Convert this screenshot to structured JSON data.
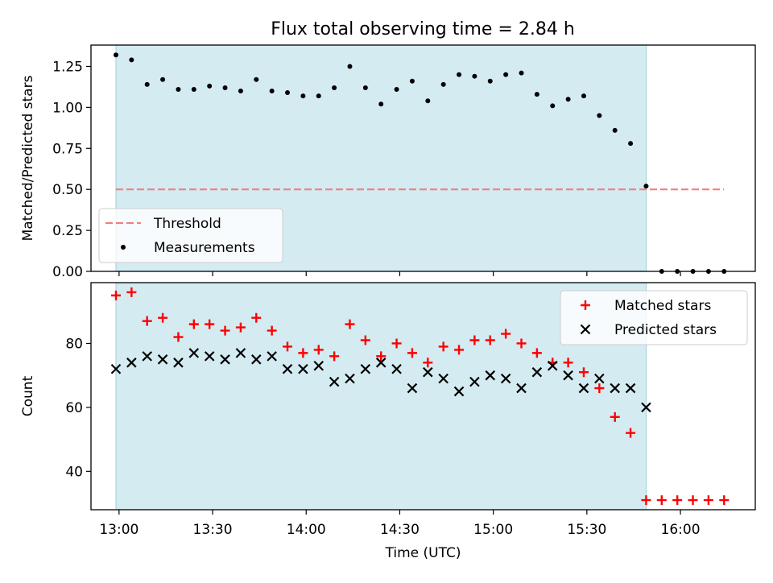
{
  "title": "Flux total observing time = 2.84 h",
  "chart_data": [
    {
      "type": "scatter",
      "ylabel": "Matched/Predicted stars",
      "ylim": [
        0,
        1.38
      ],
      "yticks": [
        0,
        0.25,
        0.5,
        0.75,
        1.0,
        1.25
      ],
      "ytick_labels": [
        "0.00",
        "0.25",
        "0.50",
        "0.75",
        "1.00",
        "1.25"
      ],
      "xlim": [
        "12:51",
        "16:24"
      ],
      "xticks": [
        "13:00",
        "13:30",
        "14:00",
        "14:30",
        "15:00",
        "15:30",
        "16:00"
      ],
      "shaded_span": [
        "12:59",
        "15:49"
      ],
      "shade_color": "#add8e6",
      "threshold": {
        "name": "Threshold",
        "value": 0.5,
        "x_range": [
          "12:59",
          "16:14"
        ],
        "color": "#f08080"
      },
      "series": [
        {
          "name": "Measurements",
          "color": "#000000",
          "x": [
            "12:59",
            "13:04",
            "13:09",
            "13:14",
            "13:19",
            "13:24",
            "13:29",
            "13:34",
            "13:39",
            "13:44",
            "13:49",
            "13:54",
            "13:59",
            "14:04",
            "14:09",
            "14:14",
            "14:19",
            "14:24",
            "14:29",
            "14:34",
            "14:39",
            "14:44",
            "14:49",
            "14:54",
            "14:59",
            "15:04",
            "15:09",
            "15:14",
            "15:19",
            "15:24",
            "15:29",
            "15:34",
            "15:39",
            "15:44",
            "15:49",
            "15:54",
            "15:59",
            "16:04",
            "16:09",
            "16:14"
          ],
          "values": [
            1.32,
            1.29,
            1.14,
            1.17,
            1.11,
            1.11,
            1.13,
            1.12,
            1.1,
            1.17,
            1.1,
            1.09,
            1.07,
            1.07,
            1.12,
            1.25,
            1.12,
            1.02,
            1.11,
            1.16,
            1.04,
            1.14,
            1.2,
            1.19,
            1.16,
            1.2,
            1.21,
            1.08,
            1.01,
            1.05,
            1.07,
            0.95,
            0.86,
            0.78,
            0.52,
            0.0,
            0.0,
            0.0,
            0.0,
            0.0
          ]
        }
      ],
      "legend": "lower-left"
    },
    {
      "type": "scatter",
      "ylabel": "Count",
      "xlabel": "Time (UTC)",
      "ylim": [
        28,
        99
      ],
      "yticks": [
        40,
        60,
        80
      ],
      "ytick_labels": [
        "40",
        "60",
        "80"
      ],
      "xlim": [
        "12:51",
        "16:24"
      ],
      "xticks": [
        "13:00",
        "13:30",
        "14:00",
        "14:30",
        "15:00",
        "15:30",
        "16:00"
      ],
      "xtick_labels": [
        "13:00",
        "13:30",
        "14:00",
        "14:30",
        "15:00",
        "15:30",
        "16:00"
      ],
      "shaded_span": [
        "12:59",
        "15:49"
      ],
      "shade_color": "#add8e6",
      "series": [
        {
          "name": "Matched stars",
          "marker": "plus",
          "color": "#ff0000",
          "x": [
            "12:59",
            "13:04",
            "13:09",
            "13:14",
            "13:19",
            "13:24",
            "13:29",
            "13:34",
            "13:39",
            "13:44",
            "13:49",
            "13:54",
            "13:59",
            "14:04",
            "14:09",
            "14:14",
            "14:19",
            "14:24",
            "14:29",
            "14:34",
            "14:39",
            "14:44",
            "14:49",
            "14:54",
            "14:59",
            "15:04",
            "15:09",
            "15:14",
            "15:19",
            "15:24",
            "15:29",
            "15:34",
            "15:39",
            "15:44",
            "15:49",
            "15:54",
            "15:59",
            "16:04",
            "16:09",
            "16:14"
          ],
          "values": [
            95,
            96,
            87,
            88,
            82,
            86,
            86,
            84,
            85,
            88,
            84,
            79,
            77,
            78,
            76,
            86,
            81,
            76,
            80,
            77,
            74,
            79,
            78,
            81,
            81,
            83,
            80,
            77,
            74,
            74,
            71,
            66,
            57,
            52,
            31,
            31,
            31,
            31,
            31,
            31
          ]
        },
        {
          "name": "Predicted stars",
          "marker": "x",
          "color": "#000000",
          "x": [
            "12:59",
            "13:04",
            "13:09",
            "13:14",
            "13:19",
            "13:24",
            "13:29",
            "13:34",
            "13:39",
            "13:44",
            "13:49",
            "13:54",
            "13:59",
            "14:04",
            "14:09",
            "14:14",
            "14:19",
            "14:24",
            "14:29",
            "14:34",
            "14:39",
            "14:44",
            "14:49",
            "14:54",
            "14:59",
            "15:04",
            "15:09",
            "15:14",
            "15:19",
            "15:24",
            "15:29",
            "15:34",
            "15:39",
            "15:44",
            "15:49"
          ],
          "values": [
            72,
            74,
            76,
            75,
            74,
            77,
            76,
            75,
            77,
            75,
            76,
            72,
            72,
            73,
            68,
            69,
            72,
            74,
            72,
            66,
            71,
            69,
            65,
            68,
            70,
            69,
            66,
            71,
            73,
            70,
            66,
            69,
            66,
            66,
            60
          ]
        }
      ],
      "legend": "upper-right"
    }
  ]
}
